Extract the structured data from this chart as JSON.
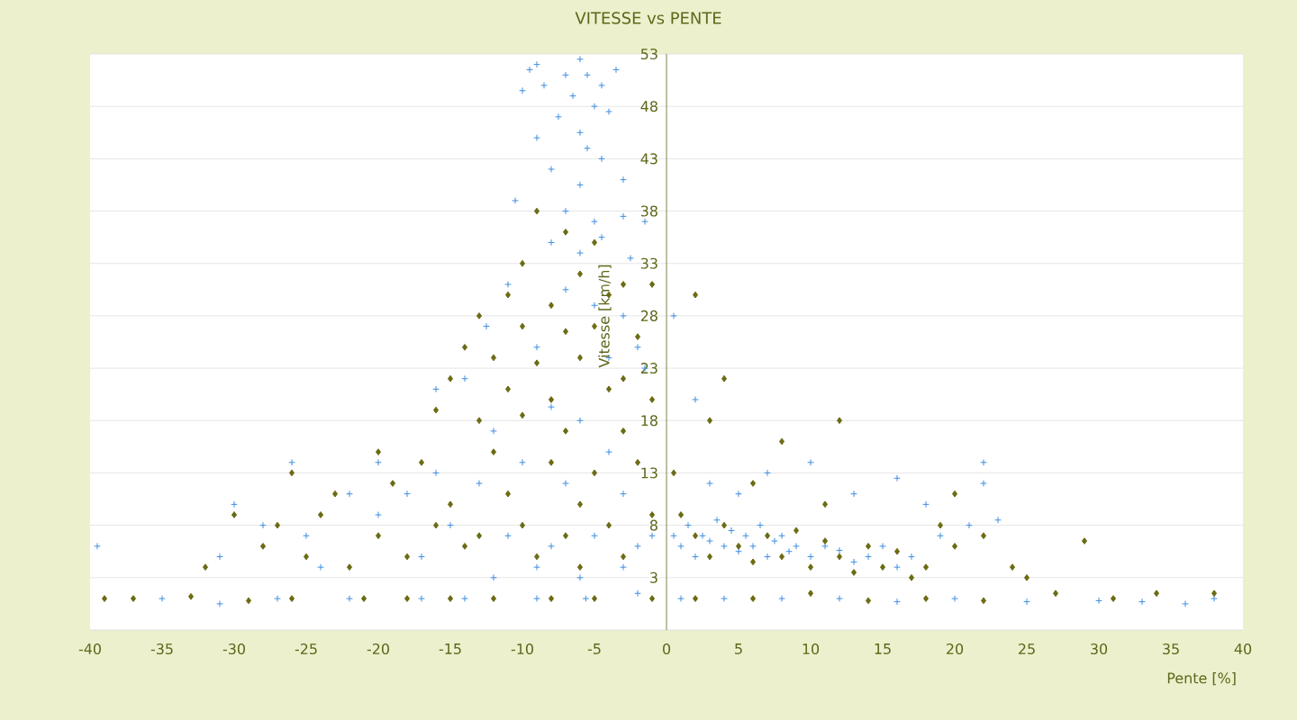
{
  "chart_data": {
    "type": "scatter",
    "title": "VITESSE vs PENTE",
    "xlabel": "Pente [%]",
    "ylabel": "Vitesse [km/h]",
    "xlim": [
      -40,
      40
    ],
    "xticks": [
      -40,
      -35,
      -30,
      -25,
      -20,
      -15,
      -10,
      -5,
      0,
      5,
      10,
      15,
      20,
      25,
      30,
      35,
      40
    ],
    "ylim": [
      -2,
      53
    ],
    "yticks": [
      3,
      8,
      13,
      18,
      23,
      28,
      33,
      38,
      43,
      48,
      53
    ],
    "grid": "y",
    "series": [
      {
        "color": "#3d8ee0",
        "marker": "cross",
        "x": [
          -9.5,
          -9,
          -8.5,
          -7,
          -6,
          -5.5,
          -4.5,
          -3.5,
          -6.5,
          -5,
          -7.5,
          -4,
          -10,
          -9,
          -6,
          -5.5,
          -4.5,
          -8,
          -6,
          -3,
          -10.5,
          -7,
          -5,
          -3,
          -1.5,
          -8,
          -6,
          -4.5,
          -2.5,
          -11,
          -7,
          -5,
          -3,
          -12.5,
          -9,
          -4,
          -2,
          -14,
          -16,
          -8,
          -1.5,
          -6,
          -12,
          -4,
          -10,
          -20,
          -26,
          -16,
          -22,
          -30,
          -18,
          -13,
          -7,
          -3,
          -28,
          -25,
          -20,
          -15,
          -11,
          -8,
          -5,
          -2,
          -31,
          -24,
          -17,
          -12,
          -9,
          -6,
          -3,
          -1,
          -39.5,
          -35,
          -31,
          -27,
          -22,
          -17,
          -14,
          -9,
          -5.6,
          -2,
          0.5,
          1,
          1.5,
          2,
          2.5,
          3,
          3.5,
          4,
          4.5,
          5,
          5.5,
          6,
          6.5,
          7,
          7.5,
          8,
          8.5,
          9,
          10,
          11,
          12,
          13,
          14,
          15,
          16,
          17,
          19,
          21,
          23,
          3,
          5,
          7,
          10,
          16,
          18,
          22,
          2,
          13,
          22,
          0.5,
          1,
          4,
          8,
          12,
          16,
          20,
          25,
          30,
          33,
          36,
          38
        ],
        "values": [
          51.5,
          52,
          50,
          51,
          52.5,
          51,
          50,
          51.5,
          49,
          48,
          47,
          47.5,
          49.5,
          45,
          45.5,
          44,
          43,
          42,
          40.5,
          41,
          39,
          38,
          37,
          37.5,
          37,
          35,
          34,
          35.5,
          33.5,
          31,
          30.5,
          29,
          28,
          27,
          25,
          24,
          25,
          22,
          21,
          19.3,
          23,
          18,
          17,
          15,
          14,
          14,
          14,
          13,
          11,
          10,
          11,
          12,
          12,
          11,
          8,
          7,
          9,
          8,
          7,
          6,
          7,
          6,
          5,
          4,
          5,
          3,
          4,
          3,
          4,
          7,
          6,
          1,
          0.5,
          1,
          1,
          1,
          1,
          1,
          1,
          1.5,
          7,
          6,
          8,
          5,
          7,
          6.5,
          8.5,
          6,
          7.5,
          5.5,
          7,
          6,
          8,
          5,
          6.5,
          7,
          5.5,
          6,
          5,
          6,
          5.6,
          4.5,
          5,
          6,
          4,
          5,
          7,
          8,
          8.5,
          12,
          11,
          13,
          14,
          12.5,
          10,
          14,
          20,
          11,
          12,
          28,
          1,
          1,
          1,
          1,
          0.7,
          1,
          0.7,
          0.8,
          0.7,
          0.5,
          1
        ]
      },
      {
        "color": "#6b6b14",
        "marker": "diamond",
        "x": [
          -9,
          -7,
          -5,
          -10,
          -6,
          -3,
          -11,
          -8,
          -4,
          -1,
          -13,
          -10,
          -7,
          -5,
          -2,
          -14,
          -12,
          -9,
          -6,
          -3,
          -15,
          -11,
          -8,
          -4,
          -1,
          -16,
          -13,
          -10,
          -7,
          -3,
          -20,
          -17,
          -12,
          -8,
          -5,
          -2,
          -26,
          -23,
          -19,
          -15,
          -11,
          -6,
          -30,
          -27,
          -24,
          -20,
          -16,
          -13,
          -10,
          -7,
          -4,
          -1,
          -32,
          -28,
          -25,
          -22,
          -18,
          -14,
          -9,
          -6,
          -3,
          -39,
          -37,
          -33,
          -29,
          -26,
          -21,
          -18,
          -15,
          -12,
          -8,
          -5,
          -1,
          1,
          2,
          3,
          4,
          5,
          6,
          7,
          8,
          9,
          10,
          11,
          12,
          13,
          14,
          15,
          16,
          17,
          18,
          19,
          20,
          22,
          24,
          25,
          29,
          2,
          4,
          3,
          8,
          12,
          0.5,
          6,
          11,
          20,
          2,
          6,
          10,
          14,
          18,
          22,
          27,
          31,
          34,
          38
        ],
        "values": [
          38,
          36,
          35,
          33,
          32,
          31,
          30,
          29,
          30,
          31,
          28,
          27,
          26.5,
          27,
          26,
          25,
          24,
          23.5,
          24,
          22,
          22,
          21,
          20,
          21,
          20,
          19,
          18,
          18.5,
          17,
          17,
          15,
          14,
          15,
          14,
          13,
          14,
          13,
          11,
          12,
          10,
          11,
          10,
          9,
          8,
          9,
          7,
          8,
          7,
          8,
          7,
          8,
          9,
          4,
          6,
          5,
          4,
          5,
          6,
          5,
          4,
          5,
          1,
          1,
          1.2,
          0.8,
          1,
          1,
          1,
          1,
          1,
          1,
          1,
          1,
          9,
          7,
          5,
          8,
          6,
          4.5,
          7,
          5,
          7.5,
          4,
          6.5,
          5,
          3.5,
          6,
          4,
          5.5,
          3,
          4,
          8,
          6,
          7,
          4,
          3,
          6.5,
          30,
          22,
          18,
          16,
          18,
          13,
          12,
          10,
          11,
          1,
          1,
          1.5,
          0.8,
          1,
          0.8,
          1.5,
          1,
          1.5,
          1.5
        ]
      }
    ]
  }
}
